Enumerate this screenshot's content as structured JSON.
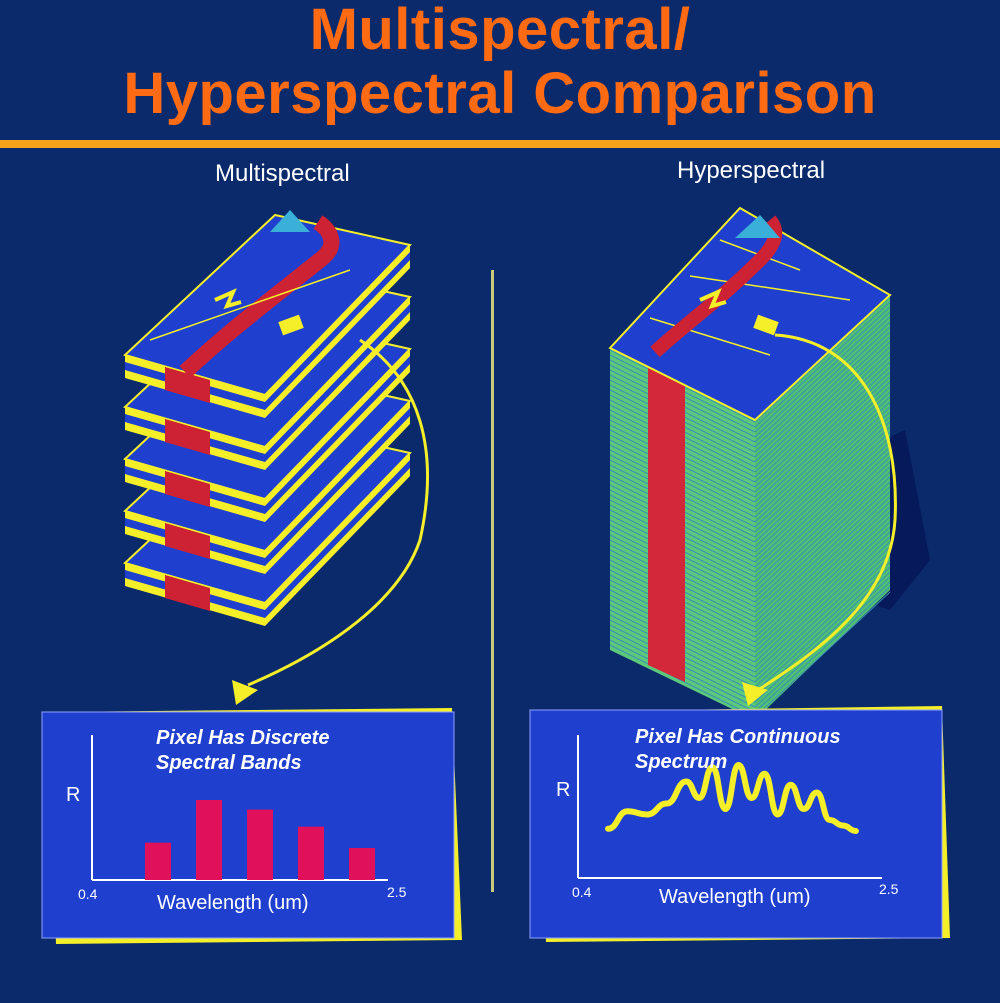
{
  "title": {
    "line1": "Multispectral/",
    "line2": "Hyperspectral Comparison"
  },
  "colors": {
    "background": "#0a2a6b",
    "title": "#ff6a13",
    "rule": "#f7a21b",
    "layer_blue": "#1f3fcf",
    "layer_yellow": "#f5ef2a",
    "layer_green": "#5cc97a",
    "stream_red": "#cc2233",
    "bar": "#e0105a"
  },
  "multispectral": {
    "label": "Multispectral",
    "panel_caption_line1": "Pixel Has Discrete",
    "panel_caption_line2": "Spectral Bands",
    "y_axis_label": "R",
    "x_min_label": "0.4",
    "x_max_label": "2.5",
    "x_axis_label": "Wavelength (um)",
    "layers": 5
  },
  "hyperspectral": {
    "label": "Hyperspectral",
    "panel_caption_line1": "Pixel Has Continuous",
    "panel_caption_line2": "Spectrum",
    "y_axis_label": "R",
    "x_min_label": "0.4",
    "x_max_label": "2.5",
    "x_axis_label": "Wavelength (um)"
  },
  "chart_data": [
    {
      "type": "bar",
      "values": [
        0.35,
        0.75,
        0.66,
        0.5,
        0.3
      ],
      "xlabel": "Wavelength (um)",
      "ylabel": "R",
      "xlim": [
        0.4,
        2.5
      ]
    },
    {
      "type": "line",
      "x": [
        0.4,
        0.55,
        0.7,
        0.85,
        1.0,
        1.1,
        1.2,
        1.3,
        1.4,
        1.5,
        1.6,
        1.7,
        1.8,
        1.9,
        2.0,
        2.1,
        2.2,
        2.3
      ],
      "y": [
        0.22,
        0.38,
        0.35,
        0.45,
        0.65,
        0.5,
        0.78,
        0.4,
        0.8,
        0.5,
        0.72,
        0.35,
        0.62,
        0.4,
        0.55,
        0.3,
        0.25,
        0.2
      ],
      "xlabel": "Wavelength (um)",
      "ylabel": "R",
      "xlim": [
        0.4,
        2.5
      ]
    }
  ]
}
